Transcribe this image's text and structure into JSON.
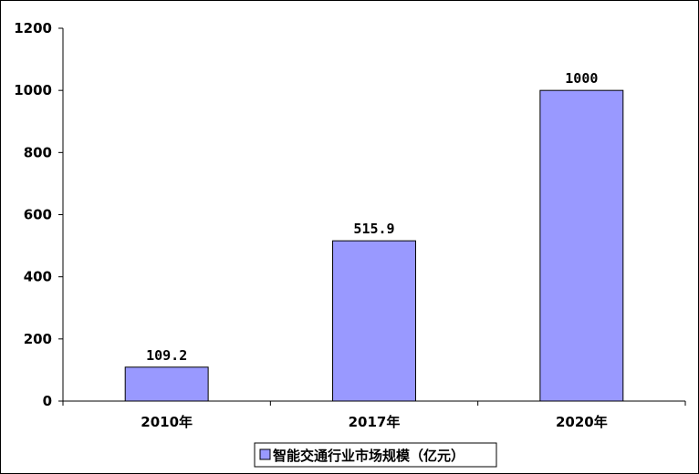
{
  "chart_data": {
    "type": "bar",
    "categories": [
      "2010年",
      "2017年",
      "2020年"
    ],
    "series": [
      {
        "name": "智能交通行业市场规模（亿元）",
        "values": [
          109.2,
          515.9,
          1000
        ]
      }
    ],
    "data_labels": [
      "109.2",
      "515.9",
      "1000"
    ],
    "ylim": [
      0,
      1200
    ],
    "yticks": [
      0,
      200,
      400,
      600,
      800,
      1000,
      1200
    ],
    "grid": false,
    "legend_position": "bottom",
    "colors": {
      "bar_fill": "#9999ff",
      "bar_stroke": "#000000"
    }
  }
}
